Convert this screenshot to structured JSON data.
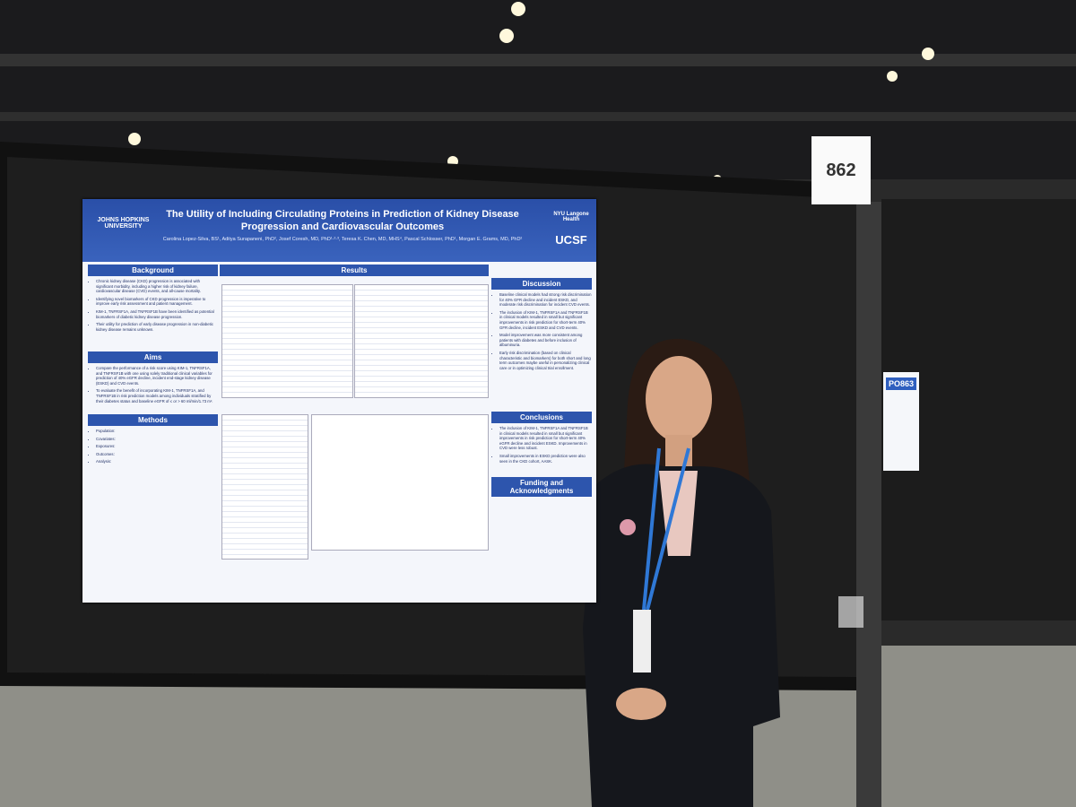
{
  "booth_sign": "862",
  "poster_tag": "PO863",
  "poster": {
    "title": "The Utility of Including Circulating Proteins in Prediction of Kidney Disease Progression and Cardiovascular Outcomes",
    "authors": "Carolina Lopez-Silva, BS¹, Aditya Surapaneni, PhD², Josef Coresh, MD, PhD¹·²·³, Teresa K. Chen, MD, MHS⁴, Pascal Schlosser, PhD¹, Morgan E. Grams, MD, PhD²",
    "logos": [
      "JOHNS HOPKINS UNIVERSITY",
      "NYU Langone Health",
      "UCSF"
    ],
    "sections": [
      {
        "heading": "Background",
        "bullets": [
          "Chronic kidney disease (CKD) progression is associated with significant morbidity, including a higher risk of kidney failure, cardiovascular disease (CVD) events, and all-cause mortality.",
          "Identifying novel biomarkers of CKD progression is imperative to improve early risk assessment and patient management.",
          "KIM-1, TNFRSF1A, and TNFRSF1B have been identified as potential biomarkers of diabetic kidney disease progression.",
          "Their utility for prediction of early disease progression in non-diabetic kidney disease remains unknown."
        ]
      },
      {
        "heading": "Aims",
        "bullets": [
          "Compare the performance of a risk score using KIM-1, TNFRSF1A, and TNFRSF1B with one using solely traditional clinical variables for prediction of 40% eGFR decline, incident end-stage kidney disease (ESKD) and CVD events.",
          "To evaluate the benefit of incorporating KIM-1, TNFRSF1A, and TNFRSF1B in risk prediction models among individuals stratified by their diabetes status and baseline eGFR of ≤ or > 60 ml/min/1.73 m²."
        ]
      },
      {
        "heading": "Methods",
        "bullets": [
          "Population:",
          "Covariates:",
          "Exposures:",
          "Outcomes:",
          "Analysis:"
        ]
      },
      {
        "heading": "Results",
        "bullets": []
      },
      {
        "heading": "Discussion",
        "bullets": [
          "Baseline clinical models had strong risk discrimination for 40% GFR decline and incident ESKD, and moderate risk discrimination for incident CVD events.",
          "The inclusion of KIM-1, TNFRSF1A and TNFRSF1B in clinical models resulted in small but significant improvements in risk prediction for short-term 40% GFR decline, incident ESKD and CVD events.",
          "Model improvement was more consistent among patients with diabetes and before inclusion of albuminuria.",
          "Early risk discrimination (based on clinical characteristic and biomarkers) for both short and long term outcomes maybe useful in personalizing clinical care or in optimizing clinical trial enrollment."
        ]
      },
      {
        "heading": "Conclusions",
        "bullets": [
          "The inclusion of KIM-1, TNFRSF1A and TNFRSF1B in clinical models resulted in small but significant improvements in risk prediction for short-term 40% eGFR decline and incident ESKD. Improvements in CVD were less robust.",
          "Small improvements in ESKD prediction were also seen in the CKD cohort, AASK."
        ]
      },
      {
        "heading": "Funding and Acknowledgments",
        "bullets": []
      }
    ]
  }
}
